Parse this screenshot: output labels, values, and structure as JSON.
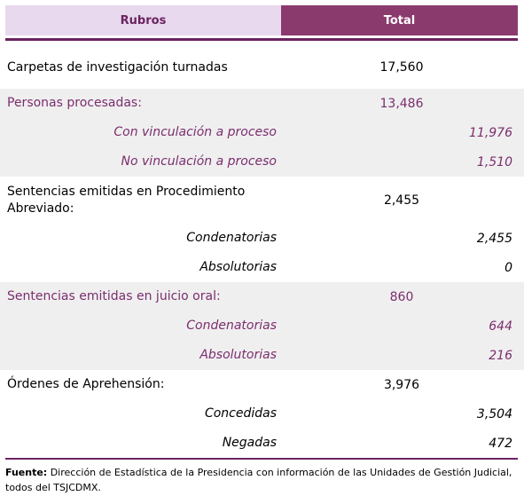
{
  "header": {
    "rubros": "Rubros",
    "total": "Total"
  },
  "groups": [
    {
      "label": "Carpetas de investigación turnadas",
      "total": "17,560",
      "items": []
    },
    {
      "label": "Personas procesadas:",
      "total": "13,486",
      "items": [
        {
          "label": "Con vinculación a proceso",
          "value": "11,976"
        },
        {
          "label": "No vinculación a proceso",
          "value": "1,510"
        }
      ]
    },
    {
      "label": "Sentencias emitidas en Procedimiento Abreviado:",
      "total": "2,455",
      "items": [
        {
          "label": "Condenatorias",
          "value": "2,455"
        },
        {
          "label": "Absolutorias",
          "value": "0"
        }
      ]
    },
    {
      "label": "Sentencias emitidas en juicio oral:",
      "total": "860",
      "items": [
        {
          "label": "Condenatorias",
          "value": "644"
        },
        {
          "label": "Absolutorias",
          "value": "216"
        }
      ]
    },
    {
      "label": "Órdenes de Aprehensión:",
      "total": "3,976",
      "items": [
        {
          "label": "Concedidas",
          "value": "3,504"
        },
        {
          "label": "Negadas",
          "value": "472"
        }
      ]
    }
  ],
  "footnote": {
    "source_label": "Fuente:",
    "text": " Dirección de Estadística de la Presidencia con información de las Unidades de Gestión Judicial, todos del TSJCDMX."
  }
}
